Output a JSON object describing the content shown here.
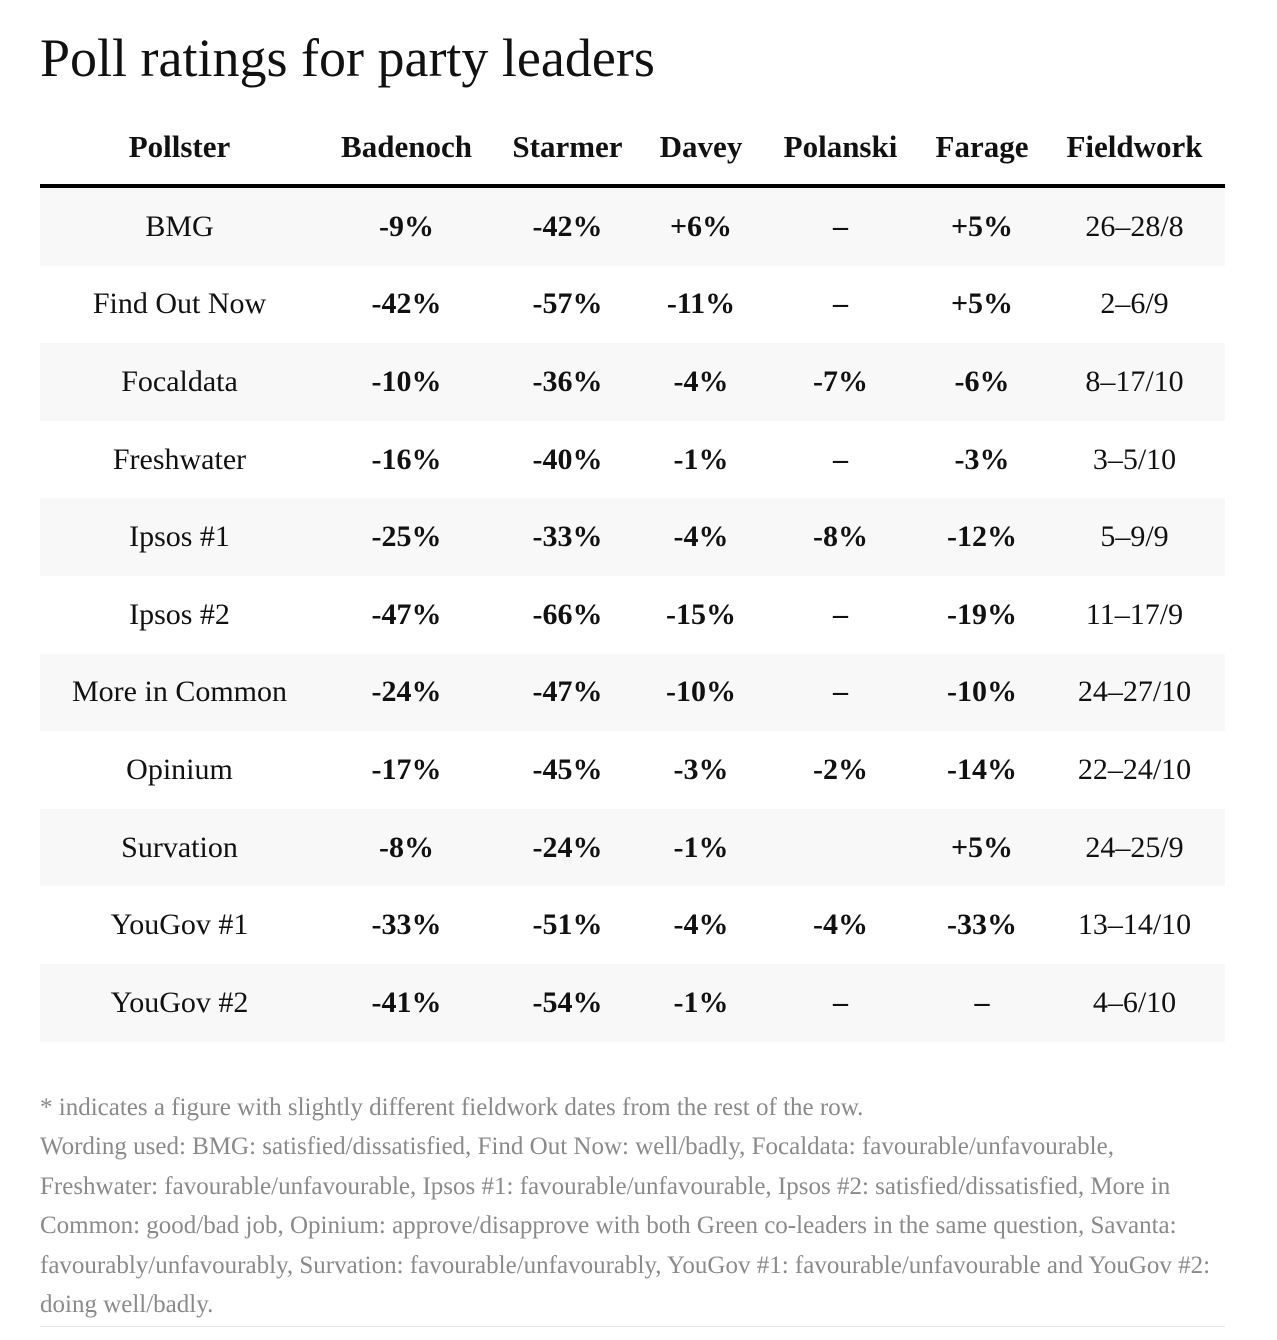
{
  "title": "Poll ratings for party leaders",
  "table": {
    "headers": [
      "Pollster",
      "Badenoch",
      "Starmer",
      "Davey",
      "Polanski",
      "Farage",
      "Fieldwork"
    ],
    "rows": [
      [
        "BMG",
        "-9%",
        "-42%",
        "+6%",
        "–",
        "+5%",
        "26–28/8"
      ],
      [
        "Find Out Now",
        "-42%",
        "-57%",
        "-11%",
        "–",
        "+5%",
        "2–6/9"
      ],
      [
        "Focaldata",
        "-10%",
        "-36%",
        "-4%",
        "-7%",
        "-6%",
        "8–17/10"
      ],
      [
        "Freshwater",
        "-16%",
        "-40%",
        "-1%",
        "–",
        "-3%",
        "3–5/10"
      ],
      [
        "Ipsos #1",
        "-25%",
        "-33%",
        "-4%",
        "-8%",
        "-12%",
        "5–9/9"
      ],
      [
        "Ipsos #2",
        "-47%",
        "-66%",
        "-15%",
        "–",
        "-19%",
        "11–17/9"
      ],
      [
        "More in Common",
        "-24%",
        "-47%",
        "-10%",
        "–",
        "-10%",
        "24–27/10"
      ],
      [
        "Opinium",
        "-17%",
        "-45%",
        "-3%",
        "-2%",
        "-14%",
        "22–24/10"
      ],
      [
        "Survation",
        "-8%",
        "-24%",
        "-1%",
        "",
        "+5%",
        "24–25/9"
      ],
      [
        "YouGov #1",
        "-33%",
        "-51%",
        "-4%",
        "-4%",
        "-33%",
        "13–14/10"
      ],
      [
        "YouGov #2",
        "-41%",
        "-54%",
        "-1%",
        "–",
        "–",
        "4–6/10"
      ]
    ]
  },
  "notes": {
    "asterisk": "* indicates a figure with slightly different fieldwork dates from the rest of the row.",
    "wording": "Wording used: BMG: satisfied/dissatisfied, Find Out Now: well/badly, Focaldata: favourable/unfavourable, Freshwater: favourable/unfavourable, Ipsos #1: favourable/unfavourable, Ipsos #2: satisfied/dissatisfied, More in Common: good/bad job, Opinium: approve/disapprove with both Green co-leaders in the same question, Savanta: favourably/unfavourably, Survation: favourable/unfavourably, YouGov #1: favourable/unfavourable and YouGov #2: doing well/badly."
  }
}
